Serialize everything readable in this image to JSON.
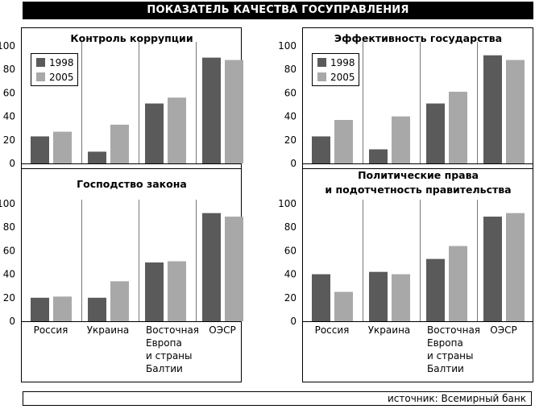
{
  "header": {
    "title": "ПОКАЗАТЕЛЬ КАЧЕСТВА ГОСУПРАВЛЕНИЯ"
  },
  "footer": {
    "source": "источник: Всемирный банк"
  },
  "colors": {
    "series_1998": "#5a5a5a",
    "series_2005": "#a8a8a8",
    "frame": "#000000"
  },
  "chart_data": [
    {
      "type": "bar",
      "title": "Контроль коррупции",
      "categories": [
        "Россия",
        "Украина",
        "Восточная Европа и страны Балтии",
        "ОЭСР"
      ],
      "series": [
        {
          "name": "1998",
          "values": [
            23,
            10,
            51,
            90
          ]
        },
        {
          "name": "2005",
          "values": [
            27,
            33,
            56,
            88
          ]
        }
      ],
      "ylim": [
        0,
        100
      ],
      "yticks": [
        "0",
        "20",
        "40",
        "60",
        "80",
        "100"
      ],
      "legend": "top-left",
      "grid": false
    },
    {
      "type": "bar",
      "title": "Эффективность государства",
      "categories": [
        "Россия",
        "Украина",
        "Восточная Европа и страны Балтии",
        "ОЭСР"
      ],
      "series": [
        {
          "name": "1998",
          "values": [
            23,
            12,
            51,
            92
          ]
        },
        {
          "name": "2005",
          "values": [
            37,
            40,
            61,
            88
          ]
        }
      ],
      "ylim": [
        0,
        100
      ],
      "yticks": [
        "0",
        "20",
        "40",
        "60",
        "80",
        "100"
      ],
      "legend": "top-left",
      "grid": false
    },
    {
      "type": "bar",
      "title": "Господство закона",
      "categories": [
        "Россия",
        "Украина",
        "Восточная Европа и страны Балтии",
        "ОЭСР"
      ],
      "series": [
        {
          "name": "1998",
          "values": [
            20,
            20,
            50,
            92
          ]
        },
        {
          "name": "2005",
          "values": [
            21,
            34,
            51,
            89
          ]
        }
      ],
      "ylim": [
        0,
        100
      ],
      "yticks": [
        "0",
        "20",
        "40",
        "60",
        "80",
        "100"
      ],
      "grid": false
    },
    {
      "type": "bar",
      "title": "Политические права и подотчетность правительства",
      "categories": [
        "Россия",
        "Украина",
        "Восточная Европа и страны Балтии",
        "ОЭСР"
      ],
      "series": [
        {
          "name": "1998",
          "values": [
            40,
            42,
            53,
            89
          ]
        },
        {
          "name": "2005",
          "values": [
            25,
            40,
            64,
            92
          ]
        }
      ],
      "ylim": [
        0,
        100
      ],
      "yticks": [
        "0",
        "20",
        "40",
        "60",
        "80",
        "100"
      ],
      "grid": false
    }
  ],
  "x_axis": {
    "labels": [
      [
        "Россия"
      ],
      [
        "Украина"
      ],
      [
        "Восточная",
        "Европа",
        "и страны",
        "Балтии"
      ],
      [
        "ОЭСР"
      ]
    ]
  }
}
